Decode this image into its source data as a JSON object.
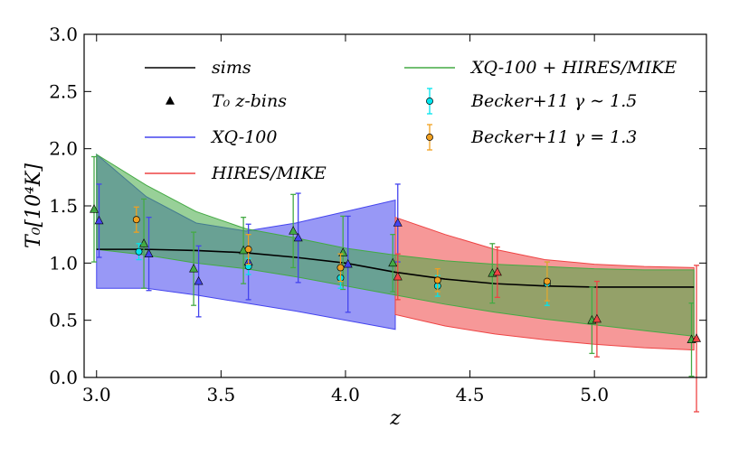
{
  "chart_data": {
    "type": "line",
    "xlabel": "z",
    "ylabel": "T₀[10⁴K]",
    "xlim": [
      2.95,
      5.45
    ],
    "ylim": [
      0.0,
      3.0
    ],
    "x_ticks": [
      "3.0",
      "3.5",
      "4.0",
      "4.5",
      "5.0"
    ],
    "x_tick_values": [
      3.0,
      3.5,
      4.0,
      4.5,
      5.0
    ],
    "y_ticks": [
      "0.0",
      "0.5",
      "1.0",
      "1.5",
      "2.0",
      "2.5",
      "3.0"
    ],
    "y_tick_values": [
      0.0,
      0.5,
      1.0,
      1.5,
      2.0,
      2.5,
      3.0
    ],
    "grid": false,
    "legend_position": "top",
    "colors": {
      "sims": "#000000",
      "xq100": "#4444ee",
      "hires": "#ee4444",
      "combined": "#44aa44",
      "becker_cyan": "#00e5ee",
      "becker_orange": "#f0a020",
      "overlap_blue_green": "#3a7a7a",
      "overlap_red_green": "#808018"
    },
    "legend": [
      {
        "label": "sims",
        "kind": "line",
        "color": "#000000"
      },
      {
        "label": "T₀ z-bins",
        "kind": "triangle",
        "color": "#000000"
      },
      {
        "label": "XQ-100",
        "kind": "line",
        "color": "#4444ee"
      },
      {
        "label": "HIRES/MIKE",
        "kind": "line",
        "color": "#ee4444"
      },
      {
        "label": "XQ-100 + HIRES/MIKE",
        "kind": "line",
        "color": "#44aa44"
      },
      {
        "label": "Becker+11 γ ∼ 1.5",
        "kind": "errpoint",
        "color": "#00e5ee"
      },
      {
        "label": "Becker+11 γ = 1.3",
        "kind": "errpoint",
        "color": "#f0a020"
      }
    ],
    "series": [
      {
        "name": "sims",
        "x": [
          3.0,
          3.2,
          3.4,
          3.6,
          3.8,
          4.0,
          4.2,
          4.4,
          4.6,
          4.8,
          5.0,
          5.2,
          5.4
        ],
        "y": [
          1.12,
          1.12,
          1.11,
          1.09,
          1.05,
          1.0,
          0.92,
          0.86,
          0.82,
          0.8,
          0.79,
          0.79,
          0.79
        ]
      }
    ],
    "bands": [
      {
        "name": "XQ-100",
        "x": [
          3.0,
          3.2,
          3.4,
          3.6,
          3.8,
          4.0,
          4.2
        ],
        "lower": [
          0.78,
          0.78,
          0.72,
          0.65,
          0.58,
          0.5,
          0.42
        ],
        "upper": [
          1.95,
          1.58,
          1.35,
          1.28,
          1.35,
          1.45,
          1.55
        ]
      },
      {
        "name": "HIRES/MIKE",
        "x": [
          4.2,
          4.4,
          4.6,
          4.8,
          5.0,
          5.2,
          5.4
        ],
        "lower": [
          0.55,
          0.45,
          0.38,
          0.33,
          0.29,
          0.26,
          0.24
        ],
        "upper": [
          1.4,
          1.25,
          1.12,
          1.03,
          0.99,
          0.97,
          0.96
        ]
      },
      {
        "name": "XQ-100 + HIRES/MIKE",
        "x": [
          3.0,
          3.2,
          3.4,
          3.6,
          3.8,
          4.0,
          4.2,
          4.4,
          4.6,
          4.8,
          5.0,
          5.2,
          5.4
        ],
        "lower": [
          1.12,
          1.07,
          1.0,
          0.95,
          0.88,
          0.8,
          0.72,
          0.64,
          0.57,
          0.51,
          0.46,
          0.41,
          0.36
        ],
        "upper": [
          1.95,
          1.68,
          1.45,
          1.3,
          1.22,
          1.13,
          1.07,
          1.02,
          0.99,
          0.97,
          0.95,
          0.94,
          0.94
        ]
      }
    ],
    "zbin_points": [
      {
        "dataset": "XQ-100 + HIRES/MIKE",
        "color": "#44aa44",
        "x": [
          2.99,
          3.19,
          3.39,
          3.59,
          3.79,
          3.99,
          4.19,
          4.59,
          4.99,
          5.39
        ],
        "y": [
          1.47,
          1.17,
          0.95,
          1.11,
          1.28,
          1.09,
          1.0,
          0.91,
          0.5,
          0.33
        ],
        "yerr": [
          0.46,
          0.39,
          0.32,
          0.29,
          0.32,
          0.32,
          0.25,
          0.26,
          0.29,
          0.32
        ]
      },
      {
        "dataset": "XQ-100",
        "color": "#4444ee",
        "x": [
          3.01,
          3.21,
          3.41,
          3.61,
          3.81,
          4.01,
          4.21
        ],
        "y": [
          1.37,
          1.08,
          0.84,
          1.01,
          1.22,
          0.99,
          1.35
        ],
        "yerr": [
          0.32,
          0.32,
          0.31,
          0.33,
          0.39,
          0.42,
          0.34
        ]
      },
      {
        "dataset": "HIRES/MIKE",
        "color": "#ee4444",
        "x": [
          4.21,
          4.61,
          5.01,
          5.41
        ],
        "y": [
          0.88,
          0.92,
          0.51,
          0.34
        ],
        "yerr": [
          0.2,
          0.22,
          0.33,
          0.64
        ]
      }
    ],
    "becker_points": [
      {
        "label": "Becker+11 γ ∼ 1.5",
        "color": "#00e5ee",
        "x": [
          3.17,
          3.61,
          3.98,
          4.37,
          4.81
        ],
        "y": [
          1.1,
          0.97,
          0.87,
          0.8,
          0.82
        ],
        "yerr": [
          0.07,
          0.07,
          0.09,
          0.09,
          0.19
        ]
      },
      {
        "label": "Becker+11 γ = 1.3",
        "color": "#f0a020",
        "x": [
          3.16,
          3.61,
          3.98,
          4.37,
          4.81
        ],
        "y": [
          1.38,
          1.12,
          0.96,
          0.85,
          0.84
        ],
        "yerr": [
          0.11,
          0.13,
          0.12,
          0.1,
          0.17
        ]
      }
    ]
  }
}
